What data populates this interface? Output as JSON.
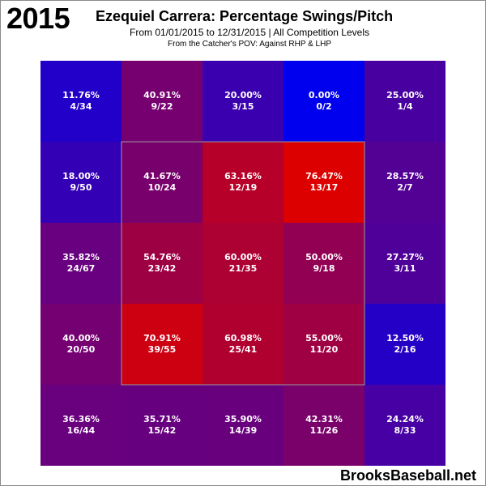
{
  "header": {
    "year": "2015",
    "title": "Ezequiel Carrera: Percentage Swings/Pitch",
    "subtitle": "From 01/01/2015 to 12/31/2015 | All Competition Levels",
    "subtitle2": "From the Catcher's POV:  Against RHP & LHP"
  },
  "watermark": "BrooksBaseball.net",
  "chart_data": {
    "type": "heatmap",
    "title": "Ezequiel Carrera: Percentage Swings/Pitch",
    "rows": 5,
    "cols": 5,
    "strike_zone": {
      "row_start": 1,
      "row_end": 3,
      "col_start": 1,
      "col_end": 3
    },
    "color_scale": {
      "low": "#0000ee",
      "high": "#dd0000"
    },
    "cells": [
      [
        {
          "pct": "11.76%",
          "frac": "4/34",
          "value": 11.76
        },
        {
          "pct": "40.91%",
          "frac": "9/22",
          "value": 40.91
        },
        {
          "pct": "20.00%",
          "frac": "3/15",
          "value": 20.0
        },
        {
          "pct": "0.00%",
          "frac": "0/2",
          "value": 0.0
        },
        {
          "pct": "25.00%",
          "frac": "1/4",
          "value": 25.0
        }
      ],
      [
        {
          "pct": "18.00%",
          "frac": "9/50",
          "value": 18.0
        },
        {
          "pct": "41.67%",
          "frac": "10/24",
          "value": 41.67
        },
        {
          "pct": "63.16%",
          "frac": "12/19",
          "value": 63.16
        },
        {
          "pct": "76.47%",
          "frac": "13/17",
          "value": 76.47
        },
        {
          "pct": "28.57%",
          "frac": "2/7",
          "value": 28.57
        }
      ],
      [
        {
          "pct": "35.82%",
          "frac": "24/67",
          "value": 35.82
        },
        {
          "pct": "54.76%",
          "frac": "23/42",
          "value": 54.76
        },
        {
          "pct": "60.00%",
          "frac": "21/35",
          "value": 60.0
        },
        {
          "pct": "50.00%",
          "frac": "9/18",
          "value": 50.0
        },
        {
          "pct": "27.27%",
          "frac": "3/11",
          "value": 27.27
        }
      ],
      [
        {
          "pct": "40.00%",
          "frac": "20/50",
          "value": 40.0
        },
        {
          "pct": "70.91%",
          "frac": "39/55",
          "value": 70.91
        },
        {
          "pct": "60.98%",
          "frac": "25/41",
          "value": 60.98
        },
        {
          "pct": "55.00%",
          "frac": "11/20",
          "value": 55.0
        },
        {
          "pct": "12.50%",
          "frac": "2/16",
          "value": 12.5
        }
      ],
      [
        {
          "pct": "36.36%",
          "frac": "16/44",
          "value": 36.36
        },
        {
          "pct": "35.71%",
          "frac": "15/42",
          "value": 35.71
        },
        {
          "pct": "35.90%",
          "frac": "14/39",
          "value": 35.9
        },
        {
          "pct": "42.31%",
          "frac": "11/26",
          "value": 42.31
        },
        {
          "pct": "24.24%",
          "frac": "8/33",
          "value": 24.24
        }
      ]
    ]
  }
}
